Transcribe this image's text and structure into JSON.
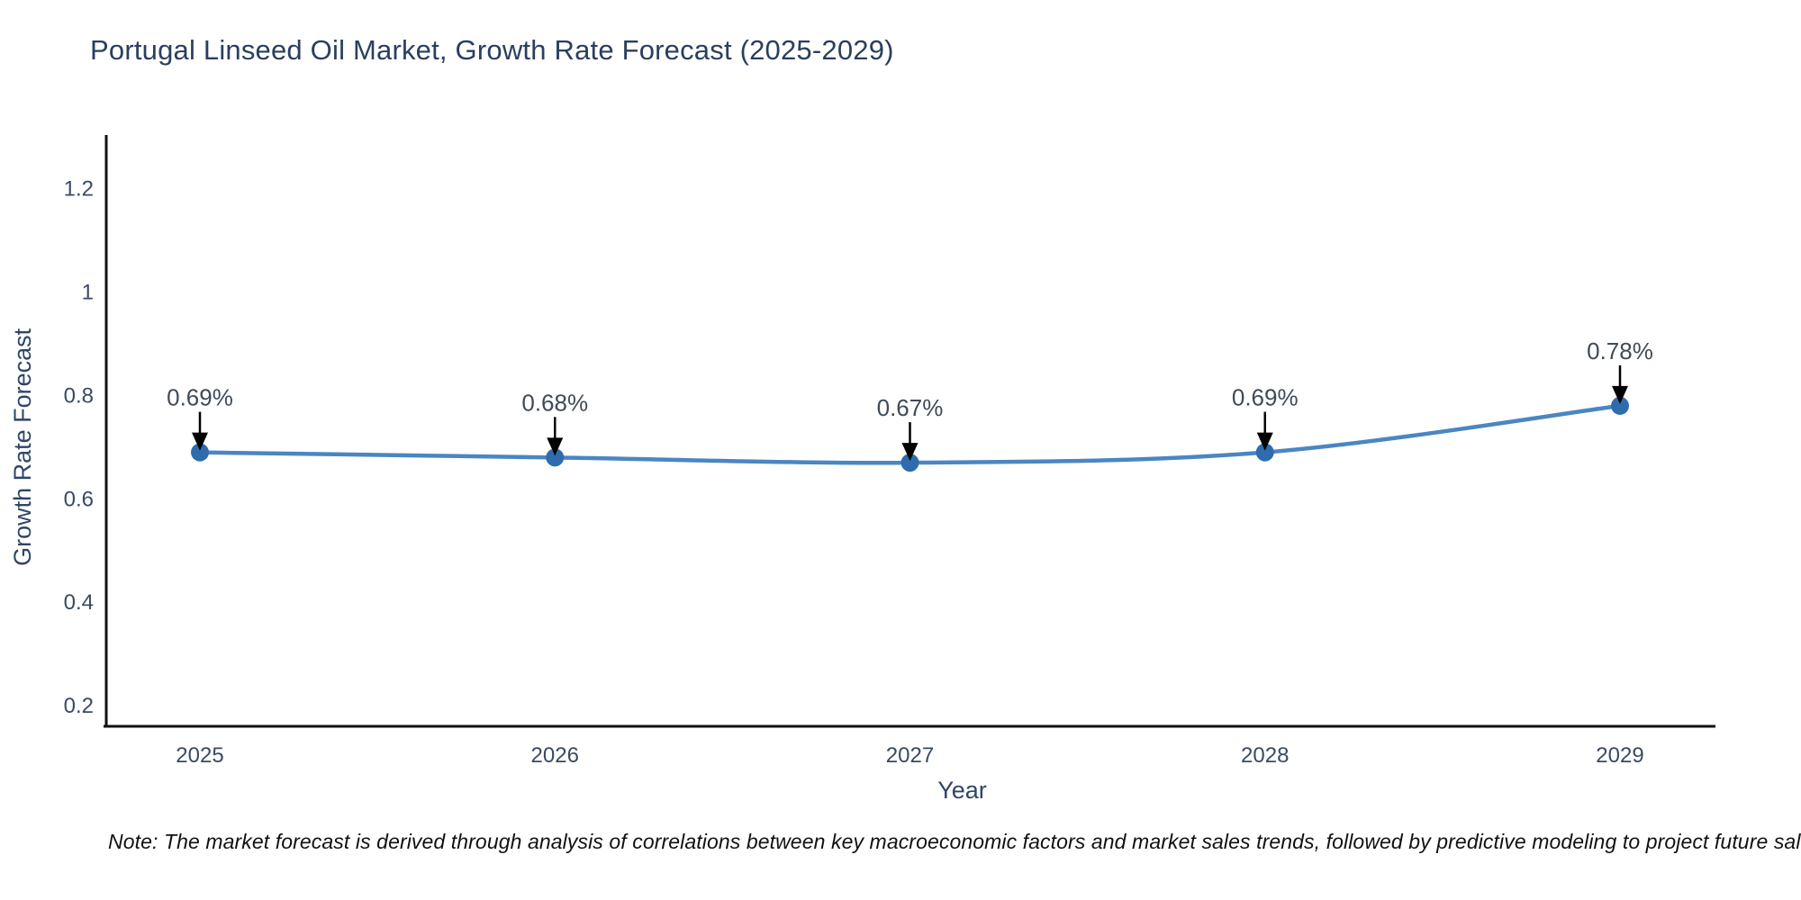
{
  "title": "Portugal Linseed Oil Market, Growth Rate Forecast (2025-2029)",
  "note": "Note: The market forecast is derived through analysis of correlations between key macroeconomic factors and market sales trends, followed by predictive modeling to project future sales",
  "chart_data": {
    "type": "line",
    "title": "Portugal Linseed Oil Market, Growth Rate Forecast (2025-2029)",
    "categories": [
      "2025",
      "2026",
      "2027",
      "2028",
      "2029"
    ],
    "series": [
      {
        "name": "Growth Rate Forecast",
        "values": [
          0.69,
          0.68,
          0.67,
          0.69,
          0.78
        ]
      }
    ],
    "point_labels": [
      "0.69%",
      "0.68%",
      "0.67%",
      "0.69%",
      "0.78%"
    ],
    "xlabel": "Year",
    "ylabel": "Growth Rate Forecast",
    "ylim": [
      0.16,
      1.29
    ],
    "yticks": [
      0.2,
      0.4,
      0.6,
      0.8,
      1,
      1.2
    ],
    "ytick_labels": [
      "0.2",
      "0.4",
      "0.6",
      "0.8",
      "1",
      "1.2"
    ],
    "line_shape": "spline",
    "grid": false,
    "legend_position": "none",
    "annotation_style": "value-above-with-down-arrow"
  },
  "colors": {
    "background": "#ffffff",
    "line": "#4a86c2",
    "marker": "#2e6cae",
    "axis_line": "#111111",
    "title_text": "#2a3f5f",
    "axis_title_text": "#2f4566",
    "tick_text": "#3b4a63",
    "annotation_text": "#404a58",
    "annotation_arrow": "#000000",
    "note_text": "#111111"
  }
}
